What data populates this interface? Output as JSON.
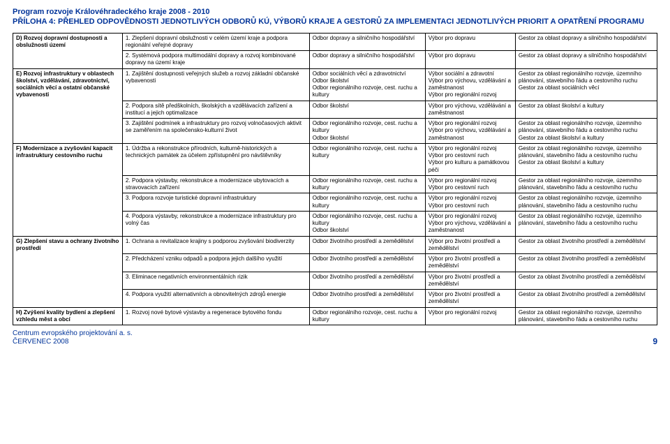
{
  "header": {
    "program_title": "Program rozvoje Královéhradeckého kraje 2008 - 2010",
    "appendix_title": "PŘÍLOHA 4: PŘEHLED ODPOVĚDNOSTI JEDNOTLIVÝCH ODBORŮ KÚ, VÝBORŮ KRAJE A GESTORŮ ZA IMPLEMENTACI JEDNOTLIVÝCH PRIORIT A OPATŘENÍ PROGRAMU"
  },
  "footer": {
    "org": "Centrum evropského projektování a. s.",
    "date": "ČERVENEC 2008",
    "page": "9"
  },
  "rows": [
    {
      "c1": "D) Rozvoj dopravní dostupnosti a obslužnosti území",
      "c2": "1. Zlepšení dopravní obslužnosti v celém území kraje a podpora regionální veřejné dopravy",
      "c3": "Odbor dopravy a silničního hospodářství",
      "c4": "Výbor pro dopravu",
      "c5": "Gestor za oblast dopravy a silničního hospodářství"
    },
    {
      "c1": "",
      "c2": "2. Systémová podpora multimodální dopravy a rozvoj kombinované dopravy na území kraje",
      "c3": "Odbor dopravy a silničního hospodářství",
      "c4": "Výbor pro dopravu",
      "c5": "Gestor za oblast dopravy a silničního hospodářství"
    },
    {
      "c1": "E) Rozvoj infrastruktury v oblastech školství, vzdělávání, zdravotnictví, sociálních věcí a ostatní občanské vybavenosti",
      "c2": "1. Zajištění dostupnosti veřejných služeb a rozvoj základní občanské vybavenosti",
      "c3": "Odbor sociálních věcí a zdravotnictví\nOdbor školství\nOdbor regionálního rozvoje, cest. ruchu a kultury",
      "c4": "Výbor sociální a zdravotní\nVýbor pro výchovu, vzdělávání a zaměstnanost\nVýbor pro regionální rozvoj",
      "c5": "Gestor za oblast regionálního rozvoje, územního plánování, stavebního řádu a cestovního ruchu\nGestor za oblast sociálních věcí"
    },
    {
      "c1": "",
      "c2": "2. Podpora sítě předškolních, školských a vzdělávacích zařízení a institucí a jejich optimalizace",
      "c3": "Odbor školství",
      "c4": "Výbor pro výchovu, vzdělávání a zaměstnanost",
      "c5": "Gestor za oblast školství a kultury"
    },
    {
      "c1": "",
      "c2": "3. Zajištění podmínek a infrastruktury pro rozvoj volnočasových aktivit se zaměřením na společensko-kulturní život",
      "c3": "Odbor regionálního rozvoje, cest. ruchu a kultury\nOdbor školství",
      "c4": "Výbor pro regionální rozvoj\nVýbor pro výchovu, vzdělávání a zaměstnanost",
      "c5": "Gestor za oblast regionálního rozvoje, územního plánování, stavebního řádu a cestovního ruchu\nGestor za oblast školství a kultury"
    },
    {
      "c1": "F) Modernizace a zvyšování kapacit infrastruktury cestovního ruchu",
      "c2": "1. Údržba a rekonstrukce přírodních, kulturně-historických a technických  památek za účelem zpřístupnění pro návštěvníky",
      "c3": "Odbor regionálního rozvoje, cest. ruchu a kultury",
      "c4": "Výbor pro regionální rozvoj\nVýbor pro cestovní ruch\nVýbor pro kulturu a památkovou péči",
      "c5": "Gestor za oblast regionálního rozvoje, územního plánování, stavebního řádu a cestovního ruchu\nGestor za oblast školství a kultury"
    },
    {
      "c1": "",
      "c2": "2. Podpora výstavby, rekonstrukce a modernizace ubytovacích a stravovacích zařízení",
      "c3": "Odbor regionálního rozvoje, cest. ruchu a kultury",
      "c4": "Výbor pro regionální rozvoj\nVýbor pro cestovní ruch",
      "c5": "Gestor za oblast regionálního rozvoje, územního plánování, stavebního řádu a cestovního ruchu"
    },
    {
      "c1": "",
      "c2": "3. Podpora rozvoje turistické dopravní infrastruktury",
      "c3": "Odbor regionálního rozvoje, cest. ruchu a kultury",
      "c4": "Výbor pro regionální rozvoj\nVýbor pro cestovní ruch",
      "c5": "Gestor za oblast regionálního rozvoje, územního plánování, stavebního řádu a cestovního ruchu"
    },
    {
      "c1": "",
      "c2": "4. Podpora výstavby, rekonstrukce a modernizace infrastruktury pro volný čas",
      "c3": "Odbor regionálního rozvoje, cest. ruchu a kultury\nOdbor školství",
      "c4": "Výbor pro regionální rozvoj\nVýbor pro výchovu, vzdělávání a zaměstnanost",
      "c5": "Gestor za oblast regionálního rozvoje, územního plánování, stavebního řádu a cestovního ruchu"
    },
    {
      "c1": "G) Zlepšení stavu a ochrany životního prostředí",
      "c2": "1. Ochrana a revitalizace krajiny s podporou zvyšování biodiverzity",
      "c3": "Odbor životního prostředí a zemědělství",
      "c4": "Výbor pro životní prostředí a zemědělství",
      "c5": "Gestor za oblast životního prostředí a zemědělství"
    },
    {
      "c1": "",
      "c2": "2. Předcházení vzniku odpadů a podpora jejich dalšího využití",
      "c3": "Odbor životního prostředí a zemědělství",
      "c4": "Výbor pro životní prostředí a zemědělství",
      "c5": "Gestor za oblast životního prostředí a zemědělství"
    },
    {
      "c1": "",
      "c2": "3. Eliminace negativních environmentálních rizik",
      "c3": "Odbor životního prostředí a zemědělství",
      "c4": "Výbor pro životní prostředí a zemědělství",
      "c5": "Gestor za oblast životního prostředí a zemědělství"
    },
    {
      "c1": "",
      "c2": "4. Podpora využití alternativních a obnovitelných zdrojů energie",
      "c3": "Odbor životního prostředí a zemědělství",
      "c4": "Výbor pro životní prostředí a zemědělství",
      "c5": "Gestor za oblast životního prostředí a zemědělství"
    },
    {
      "c1": "H) Zvýšení kvality bydlení a zlepšení vzhledu měst a obcí",
      "c2": "1. Rozvoj nové bytové výstavby a regenerace bytového fondu",
      "c3": "Odbor regionálního rozvoje, cest. ruchu a kultury",
      "c4": "Výbor pro regionální rozvoj",
      "c5": "Gestor za oblast regionálního rozvoje, územního plánování, stavebního řádu a cestovního ruchu"
    }
  ],
  "rowspans": {
    "r0": 2,
    "r2": 3,
    "r5": 4,
    "r9": 4,
    "r13": 1
  }
}
